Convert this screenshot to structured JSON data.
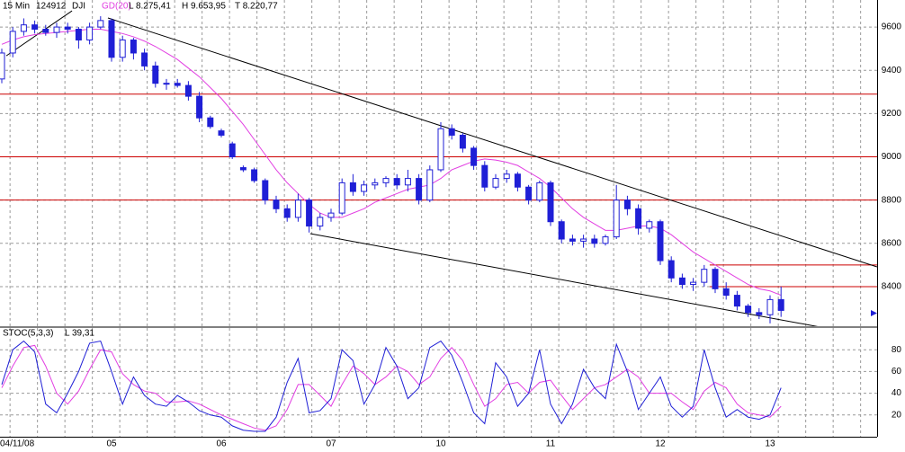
{
  "chart_data": [
    {
      "type": "candlestick",
      "header": [
        "15 Min",
        "124912",
        "DJI",
        "L 8.275,41",
        "H 9.653,95",
        "T 8.220,77"
      ],
      "categories": [
        null,
        "04/11/08",
        null,
        null,
        null,
        null,
        null,
        null,
        null,
        null,
        "05",
        null,
        null,
        null,
        null,
        null,
        null,
        null,
        null,
        null,
        "06",
        null,
        null,
        null,
        null,
        null,
        null,
        null,
        null,
        null,
        "07",
        null,
        null,
        null,
        null,
        null,
        null,
        null,
        null,
        null,
        "10",
        null,
        null,
        null,
        null,
        null,
        null,
        null,
        null,
        null,
        "11",
        null,
        null,
        null,
        null,
        null,
        null,
        null,
        null,
        null,
        "12",
        null,
        null,
        null,
        null,
        null,
        null,
        null,
        null,
        null,
        "13",
        null
      ],
      "open": [
        9360,
        9480,
        9580,
        9610,
        9590,
        9575,
        9600,
        9590,
        9540,
        9600,
        9630,
        9460,
        9540,
        9480,
        9420,
        9340,
        9340,
        9330,
        9280,
        9180,
        9120,
        9060,
        8950,
        8940,
        8890,
        8800,
        8760,
        8720,
        8800,
        8680,
        8720,
        8740,
        8880,
        8840,
        8870,
        8880,
        8900,
        8870,
        8900,
        8800,
        8940,
        9130,
        9100,
        9040,
        8960,
        8860,
        8900,
        8920,
        8860,
        8800,
        8880,
        8700,
        8620,
        8610,
        8620,
        8600,
        8630,
        8800,
        8760,
        8670,
        8700,
        8520,
        8440,
        8410,
        8420,
        8480,
        8390,
        8360,
        8310,
        8280,
        8270,
        8340
      ],
      "high": [
        9500,
        9600,
        9640,
        9630,
        9610,
        9620,
        9620,
        9600,
        9620,
        9650,
        9640,
        9560,
        9550,
        9500,
        9440,
        9360,
        9360,
        9350,
        9300,
        9190,
        9130,
        9070,
        8960,
        8950,
        8900,
        8820,
        8780,
        8830,
        8810,
        8740,
        8760,
        8900,
        8920,
        8890,
        8900,
        8910,
        8920,
        8940,
        8920,
        8960,
        9160,
        9150,
        9110,
        9050,
        8980,
        8920,
        8940,
        8930,
        8870,
        8890,
        8890,
        8710,
        8640,
        8640,
        8640,
        8640,
        8870,
        8820,
        8780,
        8710,
        8710,
        8540,
        8460,
        8440,
        8500,
        8490,
        8420,
        8380,
        8320,
        8300,
        8360,
        8400
      ],
      "low": [
        9340,
        9460,
        9560,
        9570,
        9560,
        9550,
        9570,
        9500,
        9520,
        9590,
        9440,
        9440,
        9450,
        9400,
        9320,
        9310,
        9320,
        9260,
        9160,
        9130,
        9090,
        8990,
        8930,
        8880,
        8780,
        8740,
        8700,
        8700,
        8650,
        8660,
        8700,
        8730,
        8820,
        8820,
        8850,
        8860,
        8850,
        8840,
        8780,
        8790,
        8930,
        9080,
        9020,
        8940,
        8840,
        8850,
        8880,
        8840,
        8780,
        8790,
        8680,
        8600,
        8590,
        8580,
        8580,
        8590,
        8620,
        8730,
        8640,
        8650,
        8500,
        8420,
        8390,
        8380,
        8400,
        8370,
        8340,
        8290,
        8260,
        8250,
        8230,
        8260
      ],
      "close": [
        9480,
        9580,
        9610,
        9590,
        9575,
        9600,
        9590,
        9540,
        9600,
        9630,
        9460,
        9540,
        9480,
        9420,
        9340,
        9340,
        9330,
        9280,
        9180,
        9140,
        9100,
        9000,
        8940,
        8890,
        8800,
        8760,
        8720,
        8800,
        8680,
        8720,
        8740,
        8880,
        8840,
        8870,
        8880,
        8900,
        8870,
        8900,
        8800,
        8940,
        9130,
        9100,
        9040,
        8960,
        8860,
        8900,
        8920,
        8860,
        8800,
        8880,
        8700,
        8620,
        8610,
        8620,
        8600,
        8630,
        8800,
        8760,
        8670,
        8700,
        8520,
        8440,
        8410,
        8420,
        8480,
        8390,
        8360,
        8310,
        8280,
        8270,
        8340,
        8290
      ],
      "color": "#1f1fd6",
      "series": [
        {
          "name": "GD(20)",
          "color": "#e23fe2",
          "values": [
            9520,
            9540,
            9555,
            9565,
            9570,
            9575,
            9580,
            9585,
            9590,
            9590,
            9580,
            9570,
            9555,
            9535,
            9510,
            9480,
            9450,
            9410,
            9370,
            9320,
            9270,
            9210,
            9150,
            9080,
            9010,
            8940,
            8880,
            8830,
            8780,
            8740,
            8720,
            8720,
            8740,
            8760,
            8790,
            8810,
            8830,
            8850,
            8860,
            8870,
            8900,
            8940,
            8960,
            8980,
            8990,
            8985,
            8975,
            8960,
            8930,
            8900,
            8860,
            8810,
            8760,
            8720,
            8690,
            8660,
            8660,
            8670,
            8680,
            8680,
            8670,
            8640,
            8600,
            8560,
            8530,
            8500,
            8470,
            8440,
            8410,
            8390,
            8380,
            8360
          ]
        }
      ],
      "hlines": [
        {
          "value": 9290
        },
        {
          "value": 9000
        },
        {
          "value": 8800
        },
        {
          "value": 8500,
          "start": 64.5
        },
        {
          "value": 8400,
          "start": 64.5
        }
      ],
      "hline_color": "#cc0000",
      "trendlines": [
        {
          "x": [
            0.41,
            6.4
          ],
          "y": [
            9467,
            9675
          ]
        },
        {
          "x": [
            9.67,
            79.75
          ],
          "y": [
            9642,
            8491
          ]
        },
        {
          "x": [
            28.1,
            75
          ],
          "y": [
            8645,
            8209
          ]
        }
      ],
      "ylim": [
        8217,
        9725
      ],
      "yticks": [
        8400,
        8600,
        8800,
        9000,
        9200,
        9400,
        9600
      ],
      "grid": true
    },
    {
      "type": "line",
      "title": "STOC(5,3,3)",
      "last_label": "L 39,31",
      "series": [
        {
          "color": "#1f1fd6",
          "values": [
            48,
            80,
            88,
            78,
            30,
            22,
            40,
            60,
            86,
            88,
            60,
            30,
            55,
            38,
            30,
            28,
            38,
            32,
            24,
            20,
            18,
            10,
            6,
            5,
            5,
            18,
            50,
            72,
            22,
            24,
            35,
            80,
            70,
            30,
            48,
            82,
            65,
            35,
            45,
            82,
            88,
            75,
            50,
            22,
            12,
            68,
            55,
            28,
            40,
            80,
            30,
            12,
            30,
            62,
            45,
            35,
            85,
            60,
            25,
            40,
            55,
            28,
            18,
            28,
            80,
            45,
            18,
            25,
            18,
            16,
            20,
            45
          ]
        },
        {
          "color": "#e23fe2",
          "values": [
            45,
            65,
            82,
            84,
            65,
            40,
            30,
            42,
            62,
            80,
            78,
            58,
            48,
            42,
            40,
            32,
            32,
            33,
            30,
            25,
            20,
            16,
            12,
            8,
            6,
            10,
            25,
            48,
            48,
            38,
            28,
            48,
            65,
            58,
            48,
            55,
            65,
            60,
            48,
            55,
            72,
            82,
            70,
            48,
            28,
            35,
            48,
            50,
            40,
            50,
            52,
            38,
            25,
            35,
            45,
            48,
            55,
            62,
            55,
            40,
            40,
            40,
            32,
            25,
            42,
            50,
            45,
            30,
            22,
            20,
            18,
            28
          ]
        }
      ],
      "ylim": [
        0,
        100
      ],
      "yticks": [
        20,
        40,
        60,
        80
      ],
      "grid": true
    }
  ]
}
